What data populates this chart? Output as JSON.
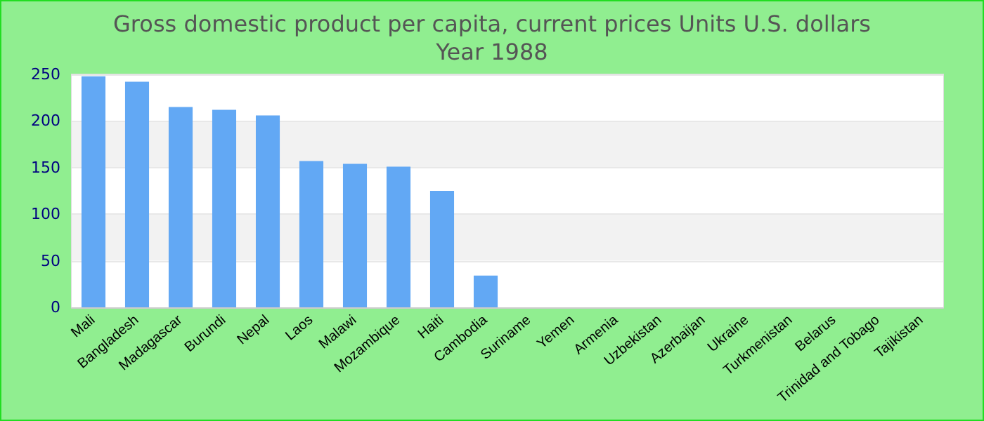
{
  "chart_data": {
    "type": "bar",
    "title": "Gross domestic product per capita, current prices Units U.S. dollars",
    "subtitle": "Year 1988",
    "categories": [
      "Mali",
      "Bangladesh",
      "Madagascar",
      "Burundi",
      "Nepal",
      "Laos",
      "Malawi",
      "Mozambique",
      "Haiti",
      "Cambodia",
      "Suriname",
      "Yemen",
      "Armenia",
      "Uzbekistan",
      "Azerbaijan",
      "Ukraine",
      "Turkmenistan",
      "Belarus",
      "Trinidad and Tobago",
      "Tajikistan"
    ],
    "values": [
      248,
      242,
      215,
      212,
      206,
      157,
      154,
      151,
      125,
      34,
      null,
      null,
      null,
      null,
      null,
      null,
      null,
      null,
      null,
      null
    ],
    "color": "#62a8f4",
    "ylim": [
      0,
      250
    ],
    "yticks": [
      0,
      50,
      100,
      150,
      200,
      250
    ],
    "grid": "y"
  }
}
